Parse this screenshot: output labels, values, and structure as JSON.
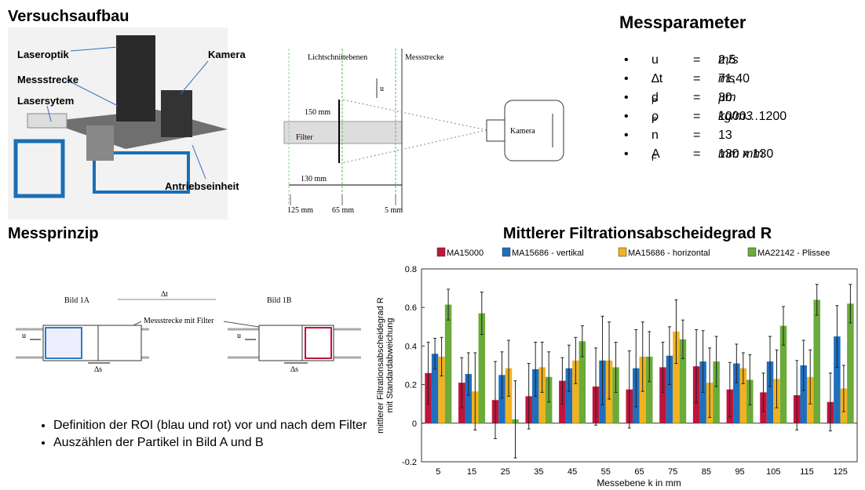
{
  "setup": {
    "title": "Versuchsaufbau",
    "labels": {
      "laseroptik": "Laseroptik",
      "messstrecke": "Messstrecke",
      "lasersystem": "Lasersytem",
      "kamera": "Kamera",
      "antrieb": "Antriebseinheit"
    }
  },
  "schematic": {
    "planes": "Lichtschnittebenen",
    "section": "Messstrecke",
    "flow": "u",
    "height": "150 mm",
    "filter": "Filter",
    "camera": "Kamera",
    "width": "130 mm",
    "pos1": "125 mm",
    "pos2": "65 mm",
    "pos3": "5 mm"
  },
  "parameters": {
    "title": "Messparameter",
    "rows": [
      {
        "symbol": "u",
        "eq": "=",
        "value": "2,5",
        "unit": "m/s"
      },
      {
        "symbol": "∆t",
        "eq": "=",
        "value": "71,40",
        "unit": "ms"
      },
      {
        "symbol": "d",
        "sub": "P",
        "eq": "=",
        "value": "30",
        "unit": "µm"
      },
      {
        "symbol": "ρ",
        "sub": "P",
        "eq": "=",
        "value": "1000…1200",
        "unit": "kg/m3"
      },
      {
        "symbol": "n",
        "eq": "=",
        "value": "13"
      },
      {
        "symbol": "A",
        "sub": "F",
        "eq": "=",
        "value": "130",
        "unit": "mm",
        "value2": "x 130",
        "unit2": "mm"
      }
    ]
  },
  "principle": {
    "title": "Messprinzip",
    "image_a": "Bild 1A",
    "dt": "∆t",
    "image_b": "Bild 1B",
    "section": "Messstrecke mit Filter",
    "flow_a": "u",
    "ds_a": "∆s",
    "flow_b": "u",
    "ds_b": "∆s",
    "bullets": [
      "Definition der ROI (blau und rot) vor und nach dem Filter",
      "Auszählen der Partikel in Bild A und B"
    ]
  },
  "chart_data": {
    "type": "bar",
    "title": "Mittlerer Filtrationsabscheidegrad R",
    "xlabel": "Messebene k in mm",
    "ylabel": [
      "mittlerer Filtrationsabscheidegrad R",
      "mit Standardabweichung"
    ],
    "categories": [
      "5",
      "15",
      "25",
      "35",
      "45",
      "55",
      "65",
      "75",
      "85",
      "95",
      "105",
      "115",
      "125"
    ],
    "series": [
      {
        "name": "MA15000",
        "color": "#c0143c",
        "values": [
          0.26,
          0.21,
          0.12,
          0.14,
          0.22,
          0.19,
          0.175,
          0.29,
          0.295,
          0.175,
          0.16,
          0.145,
          0.11
        ],
        "errors": [
          0.16,
          0.13,
          0.2,
          0.17,
          0.12,
          0.2,
          0.2,
          0.13,
          0.19,
          0.14,
          0.1,
          0.18,
          0.15
        ]
      },
      {
        "name": "MA15686 - vertikal",
        "color": "#1f6fbf",
        "values": [
          0.36,
          0.255,
          0.25,
          0.28,
          0.285,
          0.325,
          0.285,
          0.35,
          0.32,
          0.31,
          0.32,
          0.3,
          0.45
        ],
        "errors": [
          0.08,
          0.11,
          0.12,
          0.14,
          0.12,
          0.23,
          0.2,
          0.15,
          0.16,
          0.1,
          0.13,
          0.13,
          0.16
        ]
      },
      {
        "name": "MA15686 - horizontal",
        "color": "#f0b21e",
        "values": [
          0.345,
          0.165,
          0.285,
          0.29,
          0.325,
          0.325,
          0.345,
          0.475,
          0.21,
          0.285,
          0.23,
          0.24,
          0.18
        ],
        "errors": [
          0.1,
          0.2,
          0.145,
          0.13,
          0.12,
          0.2,
          0.18,
          0.165,
          0.18,
          0.08,
          0.15,
          0.14,
          0.12
        ]
      },
      {
        "name": "MA22142 - Plissee",
        "color": "#6aab3a",
        "values": [
          0.615,
          0.57,
          0.02,
          0.24,
          0.425,
          0.29,
          0.345,
          0.435,
          0.32,
          0.225,
          0.505,
          0.64,
          0.62
        ],
        "errors": [
          0.08,
          0.11,
          0.2,
          0.13,
          0.08,
          0.13,
          0.13,
          0.1,
          0.13,
          0.13,
          0.1,
          0.08,
          0.1
        ]
      }
    ],
    "ylim": [
      -0.2,
      0.8
    ],
    "yticks": [
      -0.2,
      0,
      0.2,
      0.4,
      0.6,
      0.8
    ],
    "grid": false
  }
}
